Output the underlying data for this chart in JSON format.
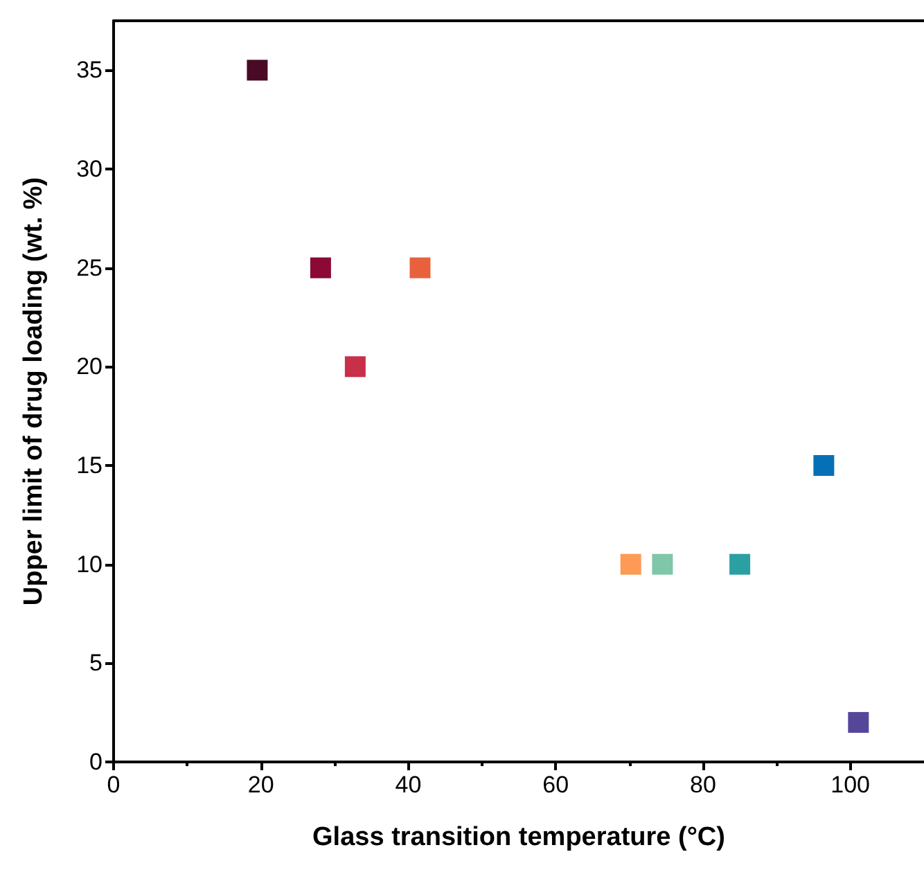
{
  "chart_data": {
    "type": "scatter",
    "xlabel": "Glass transition temperature (°C)",
    "ylabel": "Upper limit of drug loading (wt. %)",
    "x": [
      19.5,
      28.1,
      41.6,
      32.8,
      70.2,
      74.5,
      85,
      96.4,
      101.1
    ],
    "values": [
      35,
      25,
      25,
      20,
      10,
      10,
      10,
      15,
      2
    ],
    "colors": [
      "#4a0a25",
      "#8b0a35",
      "#e8613d",
      "#c8304a",
      "#fd9a55",
      "#80c6a9",
      "#2aa0a3",
      "#0670b6",
      "#56469a"
    ],
    "marker": "square",
    "xlim": [
      0,
      110
    ],
    "xticks": [
      0,
      20,
      40,
      60,
      80,
      100
    ],
    "ylim": [
      0,
      37.5
    ],
    "yticks": [
      0,
      5,
      10,
      15,
      20,
      25,
      30,
      35
    ],
    "grid": false
  }
}
